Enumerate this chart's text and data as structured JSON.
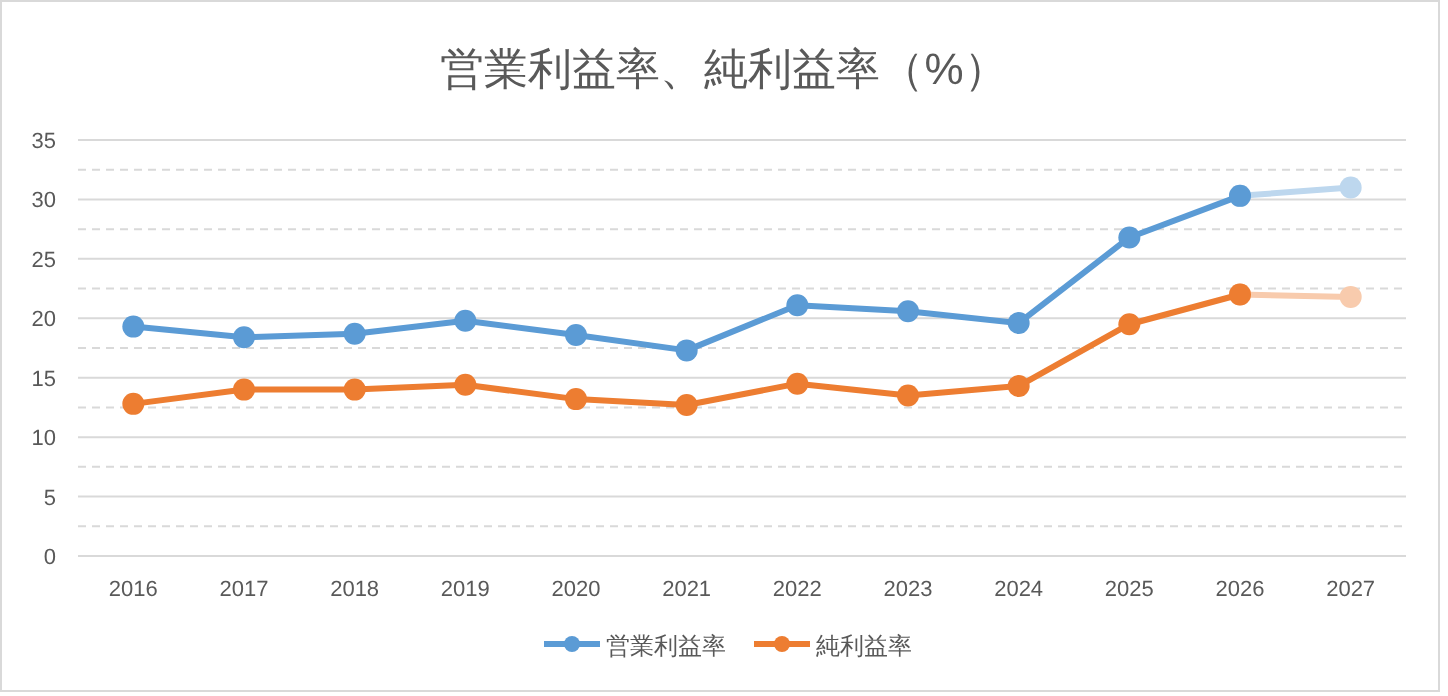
{
  "chart_data": {
    "type": "line",
    "title": "営業利益率、純利益率（%）",
    "categories": [
      "2016",
      "2017",
      "2018",
      "2019",
      "2020",
      "2021",
      "2022",
      "2023",
      "2024",
      "2025",
      "2026",
      "2027"
    ],
    "series": [
      {
        "color": "#bdd7ee",
        "values": [
          null,
          null,
          null,
          null,
          null,
          null,
          null,
          null,
          null,
          null,
          30.3,
          31.0
        ]
      },
      {
        "color": "#f8cbad",
        "values": [
          null,
          null,
          null,
          null,
          null,
          null,
          null,
          null,
          null,
          null,
          22.0,
          21.8
        ]
      },
      {
        "name": "営業利益率",
        "color": "#5b9bd5",
        "values": [
          19.3,
          18.4,
          18.7,
          19.8,
          18.6,
          17.3,
          21.1,
          20.6,
          19.6,
          26.8,
          30.3,
          null
        ]
      },
      {
        "name": "純利益率",
        "color": "#ed7d31",
        "values": [
          12.8,
          14.0,
          14.0,
          14.4,
          13.2,
          12.7,
          14.5,
          13.5,
          14.3,
          19.5,
          22.0,
          null
        ]
      }
    ],
    "ylim": [
      0,
      35
    ],
    "yticks": [
      0,
      {
        "value": 2.5,
        "label": null
      },
      5,
      {
        "value": 7.5,
        "label": null
      },
      10,
      {
        "value": 12.5,
        "label": null
      },
      15,
      {
        "value": 17.5,
        "label": null
      },
      20,
      {
        "value": 22.5,
        "label": null
      },
      25,
      {
        "value": 27.5,
        "label": null
      },
      30,
      {
        "value": 32.5,
        "label": null
      },
      35
    ],
    "grid": "y",
    "legend": "bottom",
    "marker": "circle",
    "line_style": "solid"
  }
}
